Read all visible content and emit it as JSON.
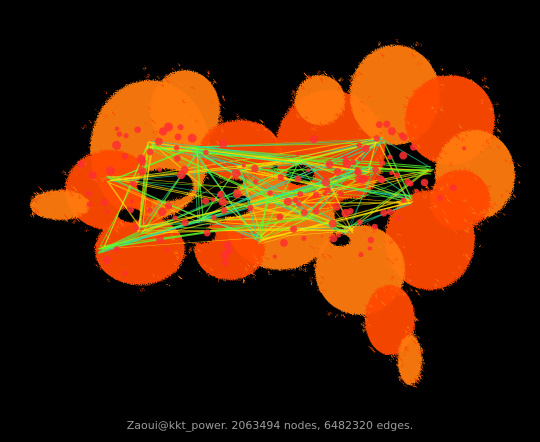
{
  "caption": "Zaoui@kkt_power. 2063494 nodes, 6482320 edges.",
  "graph": {
    "name": "Zaoui@kkt_power",
    "nodes": 2063494,
    "edges": 6482320
  },
  "colors": {
    "background": "#000000",
    "dense": "#ff4a00",
    "periphery": "#ff7a10",
    "cluster": "#ff2f30",
    "long_edge_yellow": "#ffe400",
    "long_edge_green": "#5aff30",
    "long_edge_cyan": "#20e0b0",
    "caption_text": "#9a9a9a"
  }
}
